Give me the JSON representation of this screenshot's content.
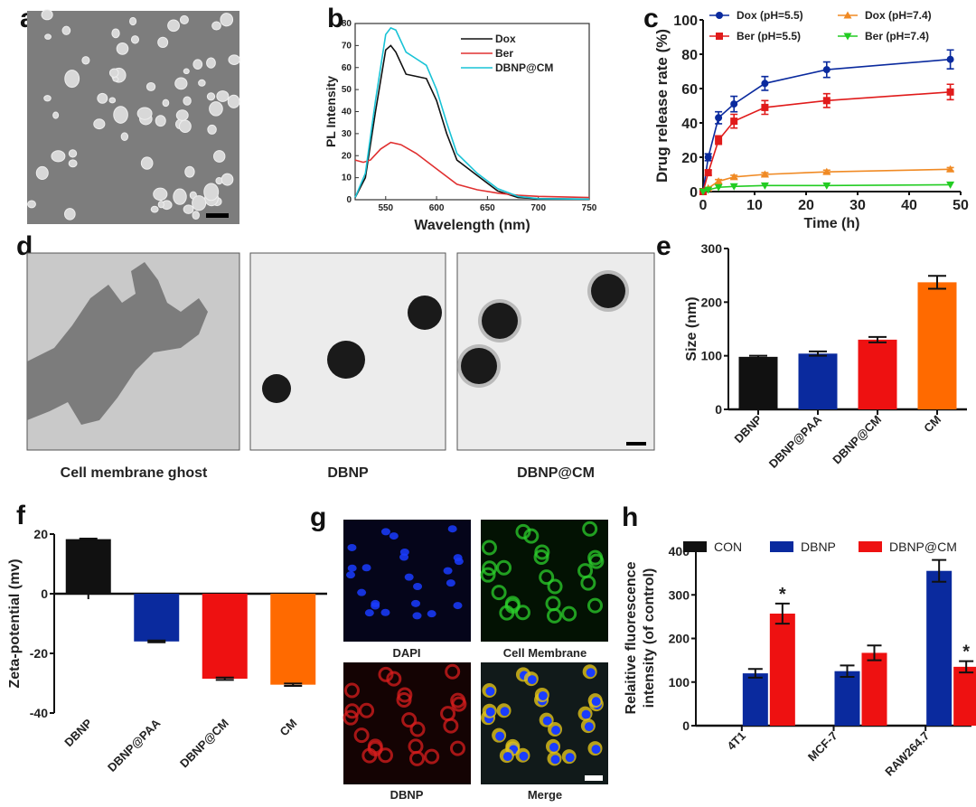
{
  "panels": {
    "a": {
      "label": "a"
    },
    "b": {
      "label": "b"
    },
    "c": {
      "label": "c"
    },
    "d": {
      "label": "d",
      "captions": [
        "Cell membrane ghost",
        "DBNP",
        "DBNP@CM"
      ]
    },
    "e": {
      "label": "e"
    },
    "f": {
      "label": "f"
    },
    "g": {
      "label": "g",
      "captions": [
        "DAPI",
        "Cell Membrane",
        "DBNP",
        "Merge"
      ]
    },
    "h": {
      "label": "h"
    }
  },
  "colors": {
    "black": "#111111",
    "blue": "#0a2a9e",
    "red": "#ee1111",
    "orange": "#ff6a00",
    "green": "#22cc22",
    "cyan": "#19c3d6",
    "dox_orange": "#f08a24"
  },
  "chart_data": [
    {
      "panel": "b",
      "type": "line",
      "xlabel": "Wavelength (nm)",
      "ylabel": "PL Intensity",
      "xlim": [
        520,
        750
      ],
      "ylim": [
        0,
        80
      ],
      "xticks": [
        550,
        600,
        650,
        700,
        750
      ],
      "yticks": [
        0,
        10,
        20,
        30,
        40,
        50,
        60,
        70,
        80
      ],
      "legend": "top-right",
      "series": [
        {
          "name": "Dox",
          "color": "#111111",
          "x": [
            520,
            530,
            540,
            550,
            555,
            560,
            570,
            580,
            590,
            600,
            610,
            620,
            640,
            660,
            680,
            700,
            750
          ],
          "y": [
            1,
            10,
            40,
            68,
            70,
            67,
            57,
            56,
            55,
            45,
            30,
            18,
            11,
            4,
            1,
            0.5,
            0.3
          ]
        },
        {
          "name": "Ber",
          "color": "#e03030",
          "x": [
            520,
            528,
            535,
            545,
            555,
            565,
            580,
            600,
            620,
            640,
            660,
            680,
            700,
            750
          ],
          "y": [
            18,
            17,
            18,
            23,
            26,
            25,
            21,
            14,
            7,
            4.5,
            3,
            2,
            1.5,
            1
          ]
        },
        {
          "name": "DBNP@CM",
          "color": "#19c3d6",
          "x": [
            520,
            530,
            540,
            550,
            555,
            560,
            570,
            580,
            590,
            600,
            610,
            620,
            640,
            660,
            680,
            700,
            750
          ],
          "y": [
            1,
            12,
            45,
            75,
            78,
            77,
            67,
            64,
            61,
            50,
            35,
            21,
            12,
            5,
            1.5,
            0.5,
            0.3
          ]
        }
      ]
    },
    {
      "panel": "c",
      "type": "line",
      "xlabel": "Time (h)",
      "ylabel": "Drug release rate (%)",
      "xlim": [
        0,
        50
      ],
      "ylim": [
        0,
        100
      ],
      "xticks": [
        0,
        10,
        20,
        30,
        40,
        50
      ],
      "yticks": [
        0,
        20,
        40,
        60,
        80,
        100
      ],
      "legend": "top",
      "x": [
        0,
        1,
        3,
        6,
        12,
        24,
        48
      ],
      "series": [
        {
          "name": "Dox (pH=5.5)",
          "color": "#0a2a9e",
          "marker": "circle",
          "values": [
            0,
            20,
            43,
            51,
            63,
            71,
            77
          ],
          "errors": [
            0,
            2,
            3.5,
            4.5,
            4,
            4.5,
            5.5
          ]
        },
        {
          "name": "Dox (pH=7.4)",
          "color": "#f08a24",
          "marker": "triangle-up",
          "values": [
            0,
            2,
            6,
            8.5,
            10,
            11.5,
            13
          ],
          "errors": [
            0,
            0.5,
            1,
            1,
            1,
            1,
            1
          ]
        },
        {
          "name": "Ber (pH=5.5)",
          "color": "#e01b1b",
          "marker": "square",
          "values": [
            0,
            11,
            30,
            41,
            49,
            53,
            58
          ],
          "errors": [
            0,
            1.5,
            2.5,
            4,
            4,
            4,
            4.5
          ]
        },
        {
          "name": "Ber (pH=7.4)",
          "color": "#22cc22",
          "marker": "triangle-down",
          "values": [
            0,
            1,
            2.5,
            3,
            3.5,
            3.5,
            4
          ],
          "errors": [
            0,
            0.3,
            0.5,
            0.5,
            0.5,
            0.5,
            0.5
          ]
        }
      ]
    },
    {
      "panel": "e",
      "type": "bar",
      "xlabel": "",
      "ylabel": "Size (nm)",
      "ylim": [
        0,
        300
      ],
      "yticks": [
        0,
        100,
        200,
        300
      ],
      "categories": [
        "DBNP",
        "DBNP@PAA",
        "DBNP@CM",
        "CM"
      ],
      "values": [
        98,
        104,
        130,
        237
      ],
      "errors": [
        2,
        4,
        5,
        12
      ],
      "bar_colors": [
        "#111111",
        "#0a2a9e",
        "#ee1111",
        "#ff6a00"
      ]
    },
    {
      "panel": "f",
      "type": "bar",
      "xlabel": "",
      "ylabel": "Zeta-potential (mv)",
      "ylim": [
        -40,
        20
      ],
      "yticks": [
        -40,
        -20,
        0,
        20
      ],
      "categories": [
        "DBNP",
        "DBNP@PAA",
        "DBNP@CM",
        "CM"
      ],
      "values": [
        18.3,
        -16,
        -28.5,
        -30.5
      ],
      "errors": [
        0.2,
        0.3,
        0.4,
        0.4
      ],
      "bar_colors": [
        "#111111",
        "#0a2a9e",
        "#ee1111",
        "#ff6a00"
      ]
    },
    {
      "panel": "h",
      "type": "bar",
      "xlabel": "",
      "ylabel": "Relaitive fluorescence intensity (of control)",
      "ylabel_lines": [
        "Relaitive fluorescence",
        "intensity (of control)"
      ],
      "ylim": [
        0,
        400
      ],
      "yticks": [
        0,
        100,
        200,
        300,
        400
      ],
      "legend": "top",
      "categories": [
        "4T1",
        "MCF-7",
        "RAW264.7"
      ],
      "series": [
        {
          "name": "CON",
          "color": "#111111",
          "values": [
            0,
            0,
            0
          ],
          "errors": [
            0,
            0,
            0
          ]
        },
        {
          "name": "DBNP",
          "color": "#0a2a9e",
          "values": [
            120,
            125,
            355
          ],
          "errors": [
            10,
            13,
            25
          ]
        },
        {
          "name": "DBNP@CM",
          "color": "#ee1111",
          "values": [
            257,
            167,
            135
          ],
          "errors": [
            23,
            17,
            13
          ]
        }
      ],
      "annotations": [
        {
          "category": "4T1",
          "series": "DBNP@CM",
          "text": "*"
        },
        {
          "category": "RAW264.7",
          "series": "DBNP@CM",
          "text": "*"
        }
      ]
    }
  ]
}
